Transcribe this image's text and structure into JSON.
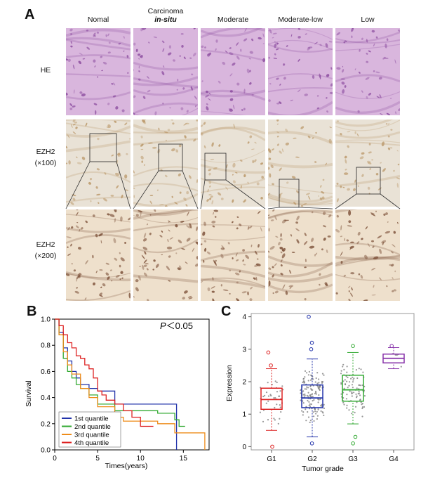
{
  "figure": {
    "panel_a_label": "A",
    "panel_b_label": "B",
    "panel_c_label": "C",
    "columns": [
      {
        "line1": "Nomal",
        "line2": ""
      },
      {
        "line1": "Carcinoma",
        "line2": "in-situ"
      },
      {
        "line1": "Moderate",
        "line2": ""
      },
      {
        "line1": "Moderate-low",
        "line2": ""
      },
      {
        "line1": "Low",
        "line2": ""
      }
    ],
    "rows": [
      {
        "line1": "HE",
        "line2": ""
      },
      {
        "line1": "EZH2",
        "line2": "(×100)"
      },
      {
        "line1": "EZH2",
        "line2": "(×200)"
      }
    ],
    "colors": {
      "he_bg": "#d9b6dd",
      "he_dark": "#8a4a9e",
      "ihc_bg": "#e9e2d6",
      "ihc_brown": "#b99565",
      "ihc200_bg": "#eee0cc",
      "ihc200_dark": "#7a4e36"
    }
  },
  "chart_data": [
    {
      "type": "line",
      "chart": "kaplan-meier",
      "annotation_italic": "P",
      "annotation_rest": "＜0.05",
      "xlabel": "Times(years)",
      "ylabel": "Survival",
      "xlim": [
        0,
        18
      ],
      "ylim": [
        0,
        1.0
      ],
      "xticks": [
        0,
        5,
        10,
        15
      ],
      "yticks": [
        0.0,
        0.2,
        0.4,
        0.6,
        0.8,
        1.0
      ],
      "legend_position": "bottom-left",
      "series": [
        {
          "name": "1st quantile",
          "color": "#2233aa",
          "x": [
            0,
            0.5,
            1,
            1.5,
            2,
            2.5,
            3,
            4,
            5,
            6,
            7,
            8,
            9,
            10,
            11,
            12,
            14.2
          ],
          "y": [
            1.0,
            0.9,
            0.78,
            0.68,
            0.6,
            0.55,
            0.5,
            0.47,
            0.45,
            0.45,
            0.35,
            0.35,
            0.35,
            0.35,
            0.35,
            0.35,
            0.0
          ]
        },
        {
          "name": "2nd quantile",
          "color": "#33aa33",
          "x": [
            0,
            0.5,
            1,
            1.5,
            2,
            2.5,
            3,
            4,
            5,
            6,
            7,
            9,
            12,
            14,
            14.5,
            15.2
          ],
          "y": [
            1.0,
            0.88,
            0.7,
            0.6,
            0.55,
            0.5,
            0.47,
            0.42,
            0.35,
            0.35,
            0.3,
            0.3,
            0.28,
            0.23,
            0.18,
            0.18
          ]
        },
        {
          "name": "3rd quantile",
          "color": "#ee8c1a",
          "x": [
            0,
            0.5,
            1,
            1.5,
            2,
            3,
            4,
            5,
            6,
            7,
            8,
            10,
            12,
            14,
            17.5
          ],
          "y": [
            1.0,
            0.88,
            0.75,
            0.65,
            0.58,
            0.47,
            0.4,
            0.33,
            0.33,
            0.25,
            0.22,
            0.22,
            0.2,
            0.13,
            0.0
          ]
        },
        {
          "name": "4th quantile",
          "color": "#dd2222",
          "x": [
            0,
            0.5,
            1,
            1.5,
            2,
            2.5,
            3,
            3.5,
            4,
            4.5,
            5,
            5.5,
            6,
            7,
            8,
            9,
            10,
            11.5
          ],
          "y": [
            1.0,
            0.95,
            0.88,
            0.82,
            0.78,
            0.72,
            0.7,
            0.65,
            0.62,
            0.55,
            0.45,
            0.42,
            0.38,
            0.35,
            0.3,
            0.25,
            0.18,
            0.18
          ]
        }
      ]
    },
    {
      "type": "scatter",
      "chart": "boxplot",
      "xlabel": "Tumor grade",
      "ylabel": "Expression",
      "categories": [
        "G1",
        "G2",
        "G3",
        "G4"
      ],
      "ylim": [
        -0.1,
        4.1
      ],
      "yticks": [
        0,
        1,
        2,
        3,
        4
      ],
      "series": [
        {
          "name": "G1",
          "color": "#dd2222",
          "q1": 1.15,
          "median": 1.45,
          "q3": 1.8,
          "whisker_low": 0.5,
          "whisker_high": 2.4,
          "outliers": [
            0.0,
            2.9,
            2.5
          ]
        },
        {
          "name": "G2",
          "color": "#2233aa",
          "q1": 1.2,
          "median": 1.5,
          "q3": 1.9,
          "whisker_low": 0.3,
          "whisker_high": 2.7,
          "outliers": [
            4.0,
            3.2,
            3.0,
            0.1
          ]
        },
        {
          "name": "G3",
          "color": "#33aa33",
          "q1": 1.4,
          "median": 1.75,
          "q3": 2.2,
          "whisker_low": 0.7,
          "whisker_high": 2.9,
          "outliers": [
            0.1,
            0.3,
            3.1
          ]
        },
        {
          "name": "G4",
          "color": "#8833aa",
          "q1": 2.58,
          "median": 2.72,
          "q3": 2.85,
          "whisker_low": 2.4,
          "whisker_high": 3.05,
          "outliers": [
            3.1
          ]
        }
      ]
    }
  ]
}
